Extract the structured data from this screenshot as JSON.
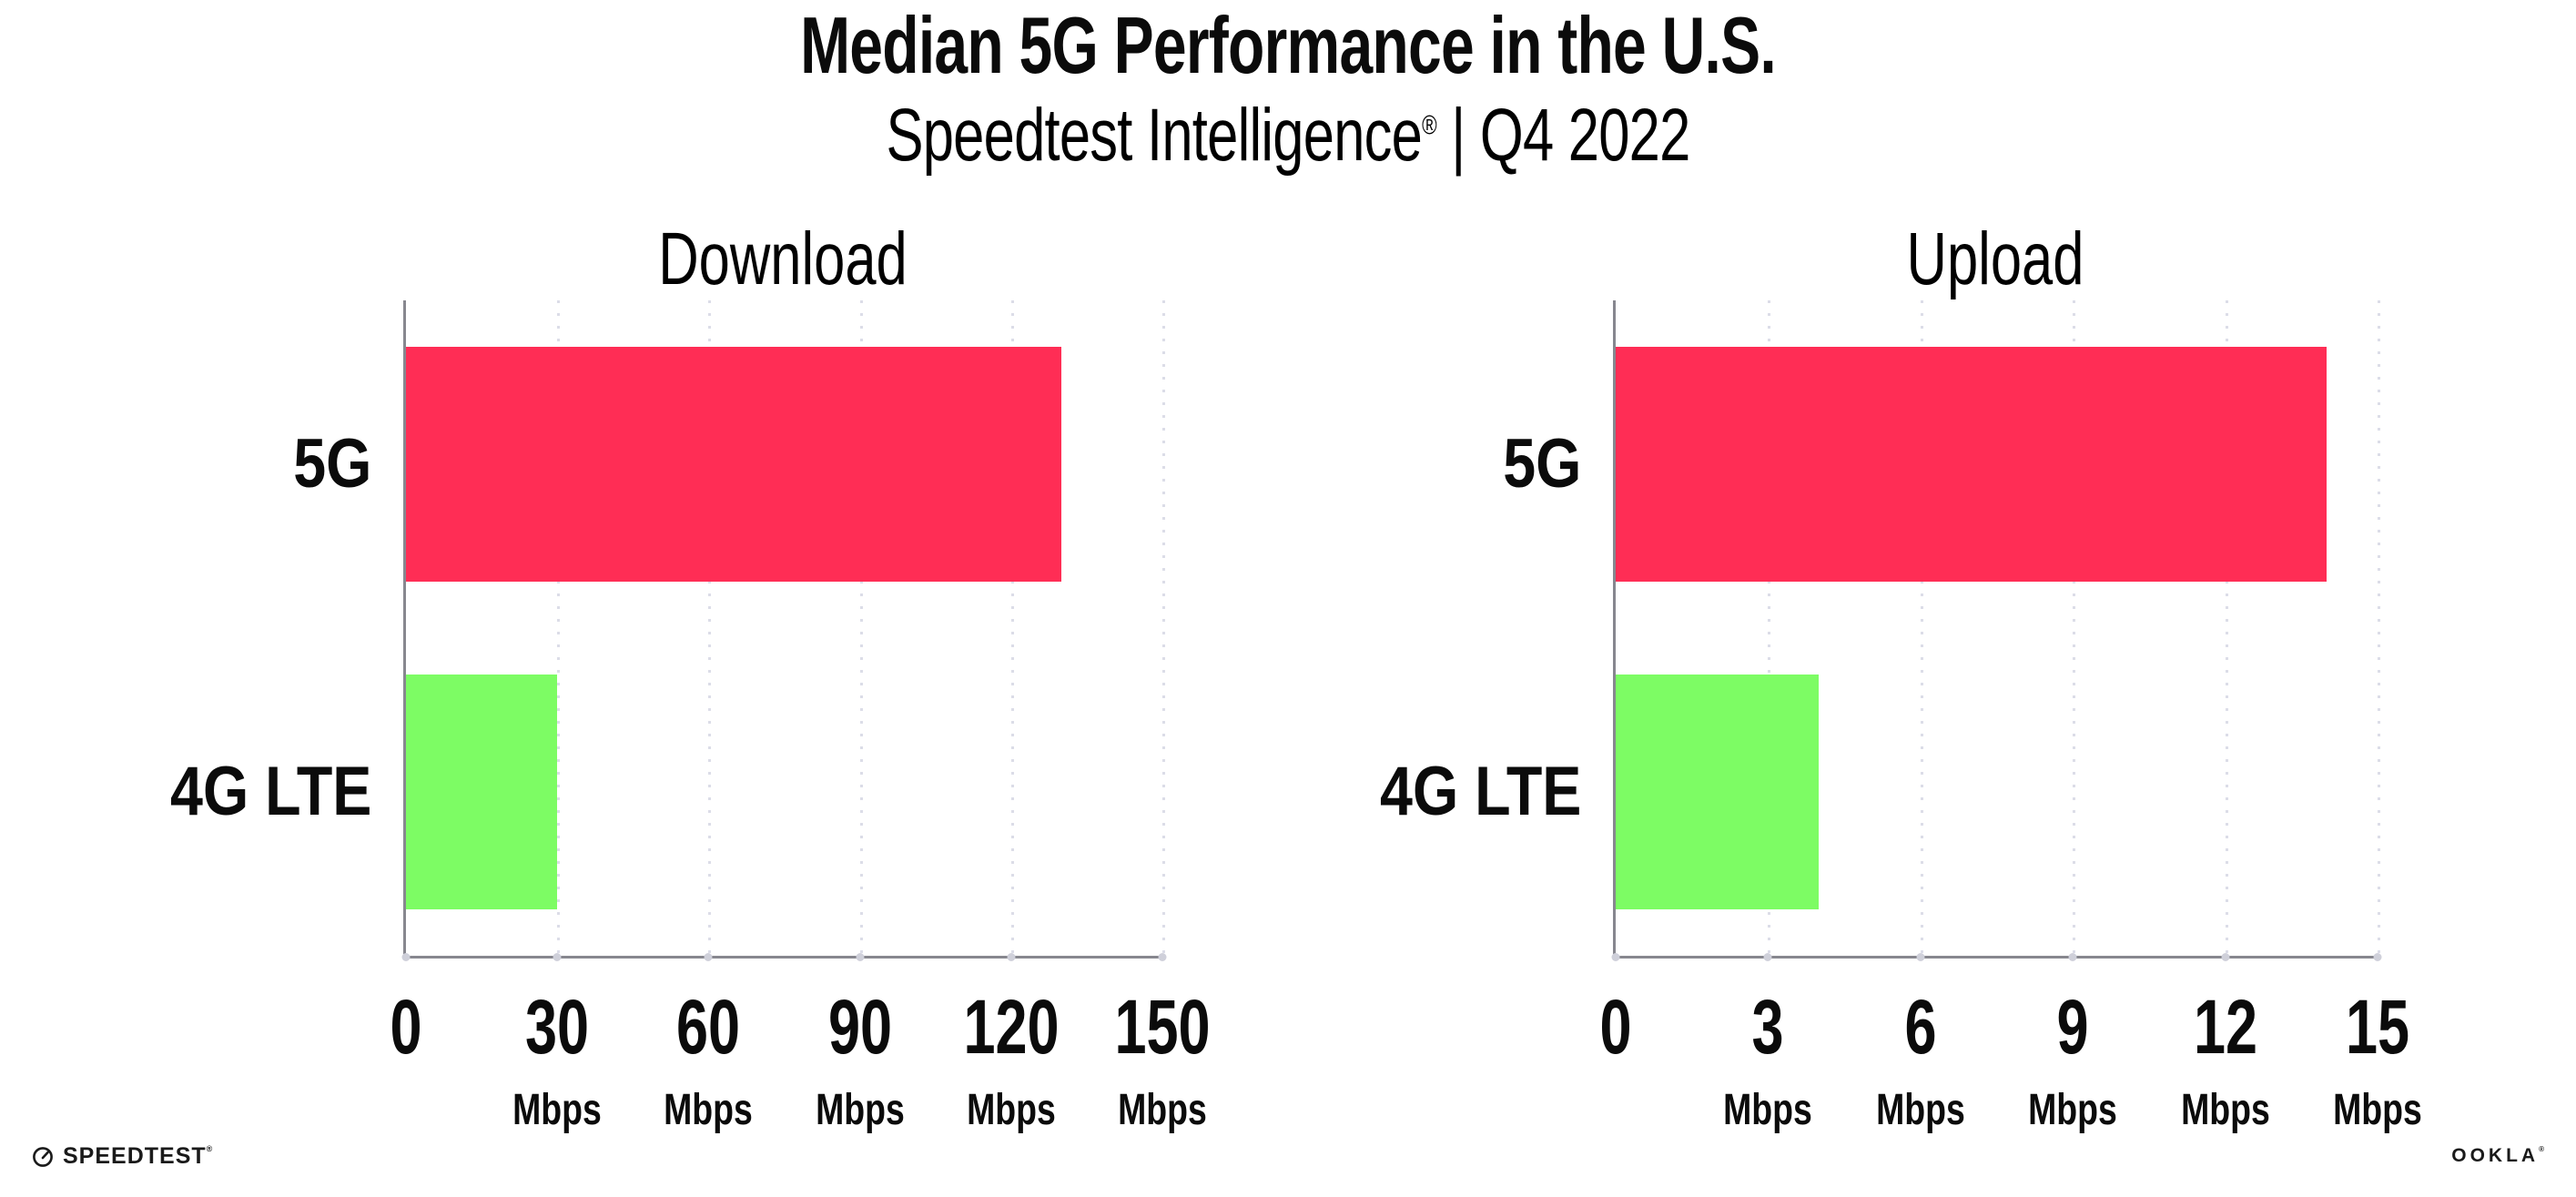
{
  "header": {
    "title": "Median 5G Performance in the U.S.",
    "subtitle_brand": "Speedtest Intelligence",
    "subtitle_reg": "®",
    "subtitle_rest": " | Q4 2022"
  },
  "colors": {
    "bar_5g": "#ff2d55",
    "bar_4g_lte": "#7dfc64",
    "axis_line": "#87878f",
    "gridline_dots": "#dcdde8",
    "text": "#0b0b0b"
  },
  "chart_data": [
    {
      "type": "bar",
      "orientation": "horizontal",
      "title": "Download",
      "categories": [
        "5G",
        "4G LTE"
      ],
      "values": [
        130,
        30
      ],
      "bar_colors": [
        "#ff2d55",
        "#7dfc64"
      ],
      "xlim": [
        0,
        150
      ],
      "grid": "vertical-dotted",
      "legend": "none",
      "ticks": [
        {
          "v": 0,
          "label": "0",
          "unit": ""
        },
        {
          "v": 30,
          "label": "30",
          "unit": "Mbps"
        },
        {
          "v": 60,
          "label": "60",
          "unit": "Mbps"
        },
        {
          "v": 90,
          "label": "90",
          "unit": "Mbps"
        },
        {
          "v": 120,
          "label": "120",
          "unit": "Mbps"
        },
        {
          "v": 150,
          "label": "150",
          "unit": "Mbps"
        }
      ]
    },
    {
      "type": "bar",
      "orientation": "horizontal",
      "title": "Upload",
      "categories": [
        "5G",
        "4G LTE"
      ],
      "values": [
        14,
        4
      ],
      "bar_colors": [
        "#ff2d55",
        "#7dfc64"
      ],
      "xlim": [
        0,
        15
      ],
      "grid": "vertical-dotted",
      "legend": "none",
      "ticks": [
        {
          "v": 0,
          "label": "0",
          "unit": ""
        },
        {
          "v": 3,
          "label": "3",
          "unit": "Mbps"
        },
        {
          "v": 6,
          "label": "6",
          "unit": "Mbps"
        },
        {
          "v": 9,
          "label": "9",
          "unit": "Mbps"
        },
        {
          "v": 12,
          "label": "12",
          "unit": "Mbps"
        },
        {
          "v": 15,
          "label": "15",
          "unit": "Mbps"
        }
      ]
    }
  ],
  "footer": {
    "speedtest_label": "SPEEDTEST",
    "speedtest_reg": "®",
    "ookla_label": "OOKLA",
    "ookla_reg": "®"
  }
}
